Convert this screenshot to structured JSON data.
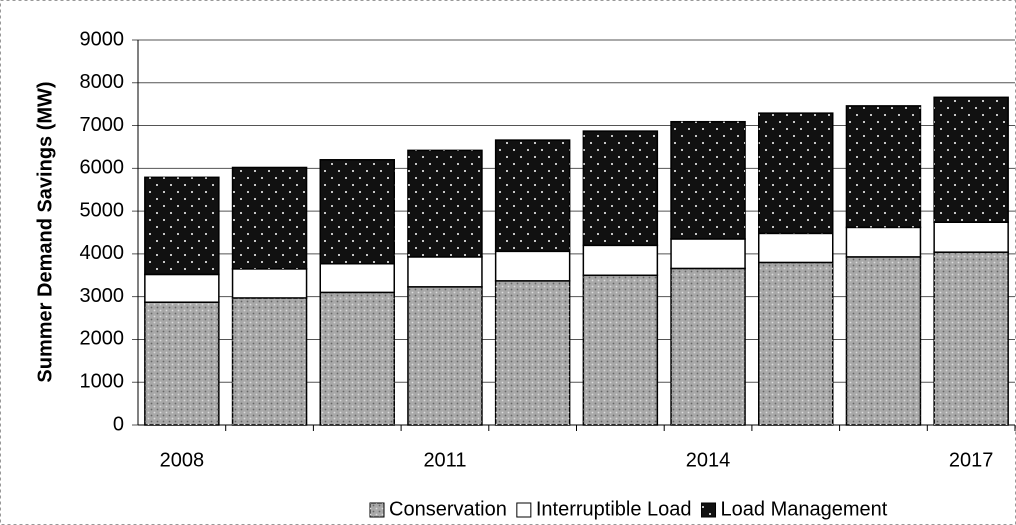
{
  "chart_data": {
    "type": "stacked-bar",
    "y_label": "Summer Demand Savings (MW)",
    "categories": [
      "2008",
      null,
      null,
      "2011",
      null,
      null,
      "2014",
      null,
      null,
      "2017"
    ],
    "series": [
      {
        "name": "Conservation",
        "color": "#a8a8a8",
        "values": [
          2870,
          2970,
          3100,
          3230,
          3370,
          3500,
          3660,
          3800,
          3930,
          4040
        ]
      },
      {
        "name": "Interruptible Load",
        "color": "#ffffff",
        "values": [
          650,
          680,
          670,
          700,
          690,
          700,
          690,
          680,
          690,
          700
        ]
      },
      {
        "name": "Load Management",
        "color": "#111111",
        "values": [
          2270,
          2370,
          2430,
          2490,
          2600,
          2670,
          2740,
          2810,
          2840,
          2920
        ]
      }
    ],
    "ylim": [
      0,
      9000
    ],
    "yticks": [
      0,
      1000,
      2000,
      3000,
      4000,
      5000,
      6000,
      7000,
      8000,
      9000
    ],
    "grid": true
  }
}
